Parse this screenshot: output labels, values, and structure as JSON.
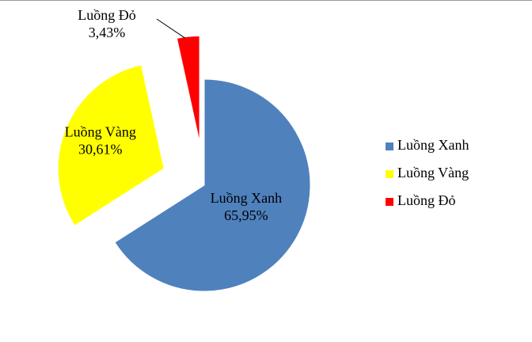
{
  "chart_data": {
    "type": "pie",
    "categories": [
      "Luồng Xanh",
      "Luồng Vàng",
      "Luồng Đỏ"
    ],
    "values": [
      65.95,
      30.61,
      3.43
    ],
    "value_labels": [
      "65,95%",
      "30,61%",
      "3,43%"
    ],
    "colors": [
      "#4f81bd",
      "#ffff00",
      "#ff0000"
    ],
    "legend": "right"
  }
}
